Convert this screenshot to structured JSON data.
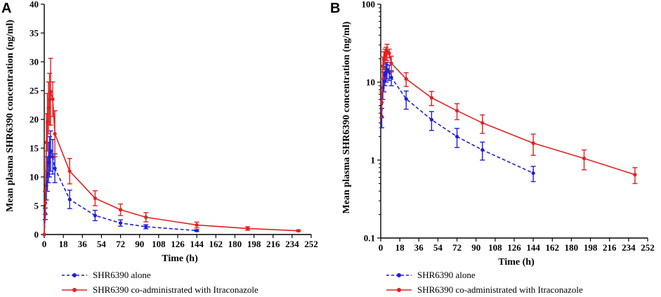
{
  "chart_data": [
    {
      "panel_label": "A",
      "type": "line",
      "yscale": "linear",
      "xlabel": "Time (h)",
      "ylabel": "Mean plasma SHR6390 concentration (ng/ml)",
      "xlim": [
        0,
        252
      ],
      "ylim": [
        0,
        40
      ],
      "xticks": [
        0,
        18,
        36,
        54,
        72,
        90,
        108,
        126,
        144,
        162,
        180,
        198,
        216,
        234,
        252
      ],
      "xtick_labels": [
        "0",
        "18",
        "36",
        "54",
        "72",
        "90",
        "108",
        "126",
        "144",
        "162",
        "180",
        "198",
        "216",
        "234",
        "252"
      ],
      "yticks": [
        0,
        5,
        10,
        15,
        20,
        25,
        30,
        35,
        40
      ],
      "ytick_labels": [
        "0",
        "5",
        "10",
        "15",
        "20",
        "25",
        "30",
        "35",
        "40"
      ],
      "series": [
        {
          "name": "SHR6390 alone",
          "color": "#1f1fd6",
          "line_style": "dashed",
          "x": [
            0,
            1,
            2,
            3,
            4,
            5,
            6,
            8,
            10,
            24,
            48,
            72,
            96,
            144
          ],
          "y": [
            0,
            3.6,
            8.5,
            10.5,
            12.5,
            13.5,
            14.5,
            13.5,
            11.5,
            6.1,
            3.3,
            2.0,
            1.35,
            0.68
          ],
          "err": [
            0,
            1.0,
            2.5,
            3.0,
            3.5,
            3.5,
            3.5,
            3.0,
            2.5,
            1.6,
            0.9,
            0.55,
            0.35,
            0.15
          ]
        },
        {
          "name": "SHR6390 co-administrated with Itraconazole",
          "color": "#e32020",
          "line_style": "solid",
          "x": [
            0,
            1,
            2,
            3,
            4,
            5,
            6,
            8,
            10,
            24,
            48,
            72,
            96,
            144,
            192,
            240
          ],
          "y": [
            0,
            5.5,
            16.0,
            19.5,
            22.0,
            23.5,
            24.8,
            23.5,
            17.5,
            11.0,
            6.3,
            4.3,
            3.0,
            1.65,
            1.05,
            0.65
          ],
          "err": [
            0,
            2.0,
            5.0,
            5.0,
            4.5,
            4.5,
            5.8,
            3.0,
            4.0,
            2.2,
            1.3,
            1.0,
            0.8,
            0.5,
            0.3,
            0.15
          ]
        }
      ]
    },
    {
      "panel_label": "B",
      "type": "line",
      "yscale": "log",
      "xlabel": "Time (h)",
      "ylabel": "Mean plasma SHR6390 concentration (ng/ml)",
      "xlim": [
        0,
        252
      ],
      "ylim": [
        0.1,
        100
      ],
      "xticks": [
        0,
        18,
        36,
        54,
        72,
        90,
        108,
        126,
        144,
        162,
        180,
        198,
        216,
        234,
        252
      ],
      "xtick_labels": [
        "0",
        "18",
        "36",
        "54",
        "72",
        "90",
        "108",
        "126",
        "144",
        "162",
        "180",
        "198",
        "216",
        "234",
        "252"
      ],
      "yticks": [
        0.1,
        1,
        10,
        100
      ],
      "ytick_labels": [
        "0.1",
        "1",
        "10",
        "100"
      ],
      "series": [
        {
          "name": "SHR6390 alone",
          "color": "#1f1fd6",
          "line_style": "dashed",
          "x": [
            1,
            2,
            3,
            4,
            5,
            6,
            8,
            10,
            24,
            48,
            72,
            96,
            144
          ],
          "y": [
            3.6,
            8.5,
            10.5,
            12.5,
            13.5,
            14.5,
            13.5,
            11.5,
            6.1,
            3.3,
            2.0,
            1.35,
            0.68
          ],
          "err": [
            1.0,
            2.5,
            3.0,
            3.5,
            3.5,
            3.5,
            3.0,
            2.5,
            1.6,
            0.9,
            0.55,
            0.35,
            0.15
          ]
        },
        {
          "name": "SHR6390 co-administrated with Itraconazole",
          "color": "#e32020",
          "line_style": "solid",
          "x": [
            1,
            2,
            3,
            4,
            5,
            6,
            8,
            10,
            24,
            48,
            72,
            96,
            144,
            192,
            240
          ],
          "y": [
            5.5,
            16.0,
            19.5,
            22.0,
            23.5,
            24.8,
            23.5,
            17.5,
            11.0,
            6.3,
            4.3,
            3.0,
            1.65,
            1.05,
            0.65
          ],
          "err": [
            2.0,
            5.0,
            5.0,
            4.5,
            4.5,
            5.8,
            3.0,
            4.0,
            2.2,
            1.3,
            1.0,
            0.8,
            0.5,
            0.3,
            0.15
          ]
        }
      ]
    }
  ],
  "legend": {
    "items": [
      {
        "label": "SHR6390 alone",
        "color": "#1f1fd6",
        "line_style": "dashed"
      },
      {
        "label": "SHR6390 co-administrated with Itraconazole",
        "color": "#e32020",
        "line_style": "solid"
      }
    ]
  }
}
